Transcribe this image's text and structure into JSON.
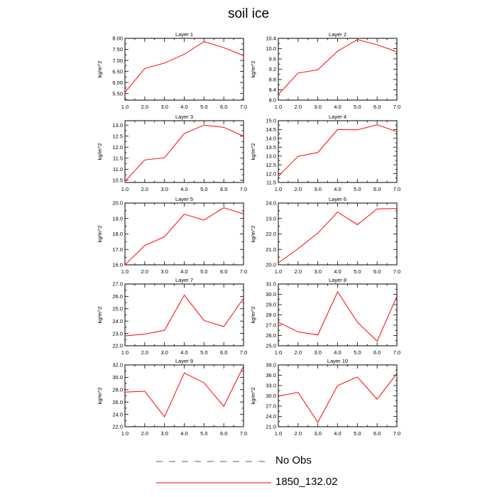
{
  "title": "soil ice",
  "chart_data": [
    {
      "type": "line",
      "title": "Layer 1",
      "ylabel": "kg/m^2",
      "xlim": [
        1,
        7
      ],
      "ylim": [
        5.2,
        8.0
      ],
      "xticks": [
        "1.0",
        "2.0",
        "3.0",
        "4.0",
        "5.0",
        "6.0",
        "7.0"
      ],
      "yticks": [
        "5.50",
        "6.00",
        "6.50",
        "7.00",
        "7.50",
        "8.00"
      ],
      "x": [
        1,
        2,
        3,
        4,
        5,
        6,
        7
      ],
      "series": [
        {
          "name": "1850_132.02",
          "color": "#ff0000",
          "values": [
            5.55,
            6.63,
            6.88,
            7.28,
            7.85,
            7.58,
            7.22
          ]
        }
      ]
    },
    {
      "type": "line",
      "title": "Layer 2",
      "ylabel": "kg/m^2",
      "xlim": [
        1,
        7
      ],
      "ylim": [
        8.0,
        10.4
      ],
      "xticks": [
        "1.0",
        "2.0",
        "3.0",
        "4.0",
        "5.0",
        "6.0",
        "7.0"
      ],
      "yticks": [
        "8.0",
        "8.4",
        "8.8",
        "9.2",
        "9.6",
        "10.0",
        "10.4"
      ],
      "x": [
        1,
        2,
        3,
        4,
        5,
        6,
        7
      ],
      "series": [
        {
          "name": "1850_132.02",
          "color": "#ff0000",
          "values": [
            8.22,
            9.05,
            9.18,
            9.9,
            10.35,
            10.15,
            9.88
          ]
        }
      ]
    },
    {
      "type": "line",
      "title": "Layer 3",
      "ylabel": "kg/m^2",
      "xlim": [
        1,
        7
      ],
      "ylim": [
        10.4,
        13.2
      ],
      "xticks": [
        "1.0",
        "2.0",
        "3.0",
        "4.0",
        "5.0",
        "6.0",
        "7.0"
      ],
      "yticks": [
        "10.5",
        "11.0",
        "11.5",
        "12.0",
        "12.5",
        "13.0"
      ],
      "x": [
        1,
        2,
        3,
        4,
        5,
        6,
        7
      ],
      "series": [
        {
          "name": "1850_132.02",
          "color": "#ff0000",
          "values": [
            10.45,
            11.42,
            11.52,
            12.62,
            13.0,
            12.9,
            12.5
          ]
        }
      ]
    },
    {
      "type": "line",
      "title": "Layer 4",
      "ylabel": "kg/m^2",
      "xlim": [
        1,
        7
      ],
      "ylim": [
        11.5,
        15.0
      ],
      "xticks": [
        "1.0",
        "2.0",
        "3.0",
        "4.0",
        "5.0",
        "6.0",
        "7.0"
      ],
      "yticks": [
        "11.5",
        "12.0",
        "12.5",
        "13.0",
        "13.5",
        "14.0",
        "14.5",
        "15.0"
      ],
      "x": [
        1,
        2,
        3,
        4,
        5,
        6,
        7
      ],
      "series": [
        {
          "name": "1850_132.02",
          "color": "#ff0000",
          "values": [
            11.85,
            12.98,
            13.2,
            14.5,
            14.48,
            14.77,
            14.38
          ]
        }
      ]
    },
    {
      "type": "line",
      "title": "Layer 5",
      "ylabel": "kg/m^2",
      "xlim": [
        1,
        7
      ],
      "ylim": [
        16.0,
        20.0
      ],
      "xticks": [
        "1.0",
        "2.0",
        "3.0",
        "4.0",
        "5.0",
        "6.0",
        "7.0"
      ],
      "yticks": [
        "16.0",
        "17.0",
        "18.0",
        "19.0",
        "20.0"
      ],
      "x": [
        1,
        2,
        3,
        4,
        5,
        6,
        7
      ],
      "series": [
        {
          "name": "1850_132.02",
          "color": "#ff0000",
          "values": [
            16.0,
            17.25,
            17.82,
            19.28,
            18.9,
            19.7,
            19.3
          ]
        }
      ]
    },
    {
      "type": "line",
      "title": "Layer 6",
      "ylabel": "kg/m^2",
      "xlim": [
        1,
        7
      ],
      "ylim": [
        20.0,
        24.0
      ],
      "xticks": [
        "1.0",
        "2.0",
        "3.0",
        "4.0",
        "5.0",
        "6.0",
        "7.0"
      ],
      "yticks": [
        "20.0",
        "21.0",
        "22.0",
        "23.0",
        "24.0"
      ],
      "x": [
        1,
        2,
        3,
        4,
        5,
        6,
        7
      ],
      "series": [
        {
          "name": "1850_132.02",
          "color": "#ff0000",
          "values": [
            20.12,
            21.05,
            22.05,
            23.42,
            22.6,
            23.62,
            23.65
          ]
        }
      ]
    },
    {
      "type": "line",
      "title": "Layer 7",
      "ylabel": "kg/m^2",
      "xlim": [
        1,
        7
      ],
      "ylim": [
        22.0,
        27.0
      ],
      "xticks": [
        "1.0",
        "2.0",
        "3.0",
        "4.0",
        "5.0",
        "6.0",
        "7.0"
      ],
      "yticks": [
        "22.0",
        "23.0",
        "24.0",
        "25.0",
        "26.0",
        "27.0"
      ],
      "x": [
        1,
        2,
        3,
        4,
        5,
        6,
        7
      ],
      "series": [
        {
          "name": "1850_132.02",
          "color": "#ff0000",
          "values": [
            22.8,
            22.95,
            23.25,
            26.1,
            24.05,
            23.55,
            25.85
          ]
        }
      ]
    },
    {
      "type": "line",
      "title": "Layer 8",
      "ylabel": "kg/m^2",
      "xlim": [
        1,
        7
      ],
      "ylim": [
        25.0,
        31.0
      ],
      "xticks": [
        "1.0",
        "2.0",
        "3.0",
        "4.0",
        "5.0",
        "6.0",
        "7.0"
      ],
      "yticks": [
        "25.0",
        "26.0",
        "27.0",
        "28.0",
        "29.0",
        "30.0",
        "31.0"
      ],
      "x": [
        1,
        2,
        3,
        4,
        5,
        6,
        7
      ],
      "series": [
        {
          "name": "1850_132.02",
          "color": "#ff0000",
          "values": [
            27.3,
            26.35,
            26.05,
            30.25,
            27.3,
            25.45,
            29.8
          ]
        }
      ]
    },
    {
      "type": "line",
      "title": "Layer 9",
      "ylabel": "kg/m^2",
      "xlim": [
        1,
        7
      ],
      "ylim": [
        22.0,
        32.0
      ],
      "xticks": [
        "1.0",
        "2.0",
        "3.0",
        "4.0",
        "5.0",
        "6.0",
        "7.0"
      ],
      "yticks": [
        "22.0",
        "24.0",
        "26.0",
        "28.0",
        "30.0",
        "32.0"
      ],
      "x": [
        1,
        2,
        3,
        4,
        5,
        6,
        7
      ],
      "series": [
        {
          "name": "1850_132.02",
          "color": "#ff0000",
          "values": [
            27.6,
            27.75,
            23.6,
            30.7,
            29.1,
            25.3,
            31.8
          ]
        }
      ]
    },
    {
      "type": "line",
      "title": "Layer 10",
      "ylabel": "kg/m^2",
      "xlim": [
        1,
        7
      ],
      "ylim": [
        21.0,
        39.0
      ],
      "xticks": [
        "1.0",
        "2.0",
        "3.0",
        "4.0",
        "5.0",
        "6.0",
        "7.0"
      ],
      "yticks": [
        "21.0",
        "24.0",
        "27.0",
        "30.0",
        "33.0",
        "36.0",
        "39.0"
      ],
      "x": [
        1,
        2,
        3,
        4,
        5,
        6,
        7
      ],
      "series": [
        {
          "name": "1850_132.02",
          "color": "#ff0000",
          "values": [
            29.9,
            31.0,
            22.3,
            33.0,
            35.5,
            29.0,
            36.5
          ]
        }
      ]
    }
  ],
  "legend": {
    "items": [
      {
        "label": "No Obs",
        "color": "#5a5a96",
        "style": "dashed"
      },
      {
        "label": "1850_132.02",
        "color": "#ff0000",
        "style": "solid"
      }
    ]
  }
}
